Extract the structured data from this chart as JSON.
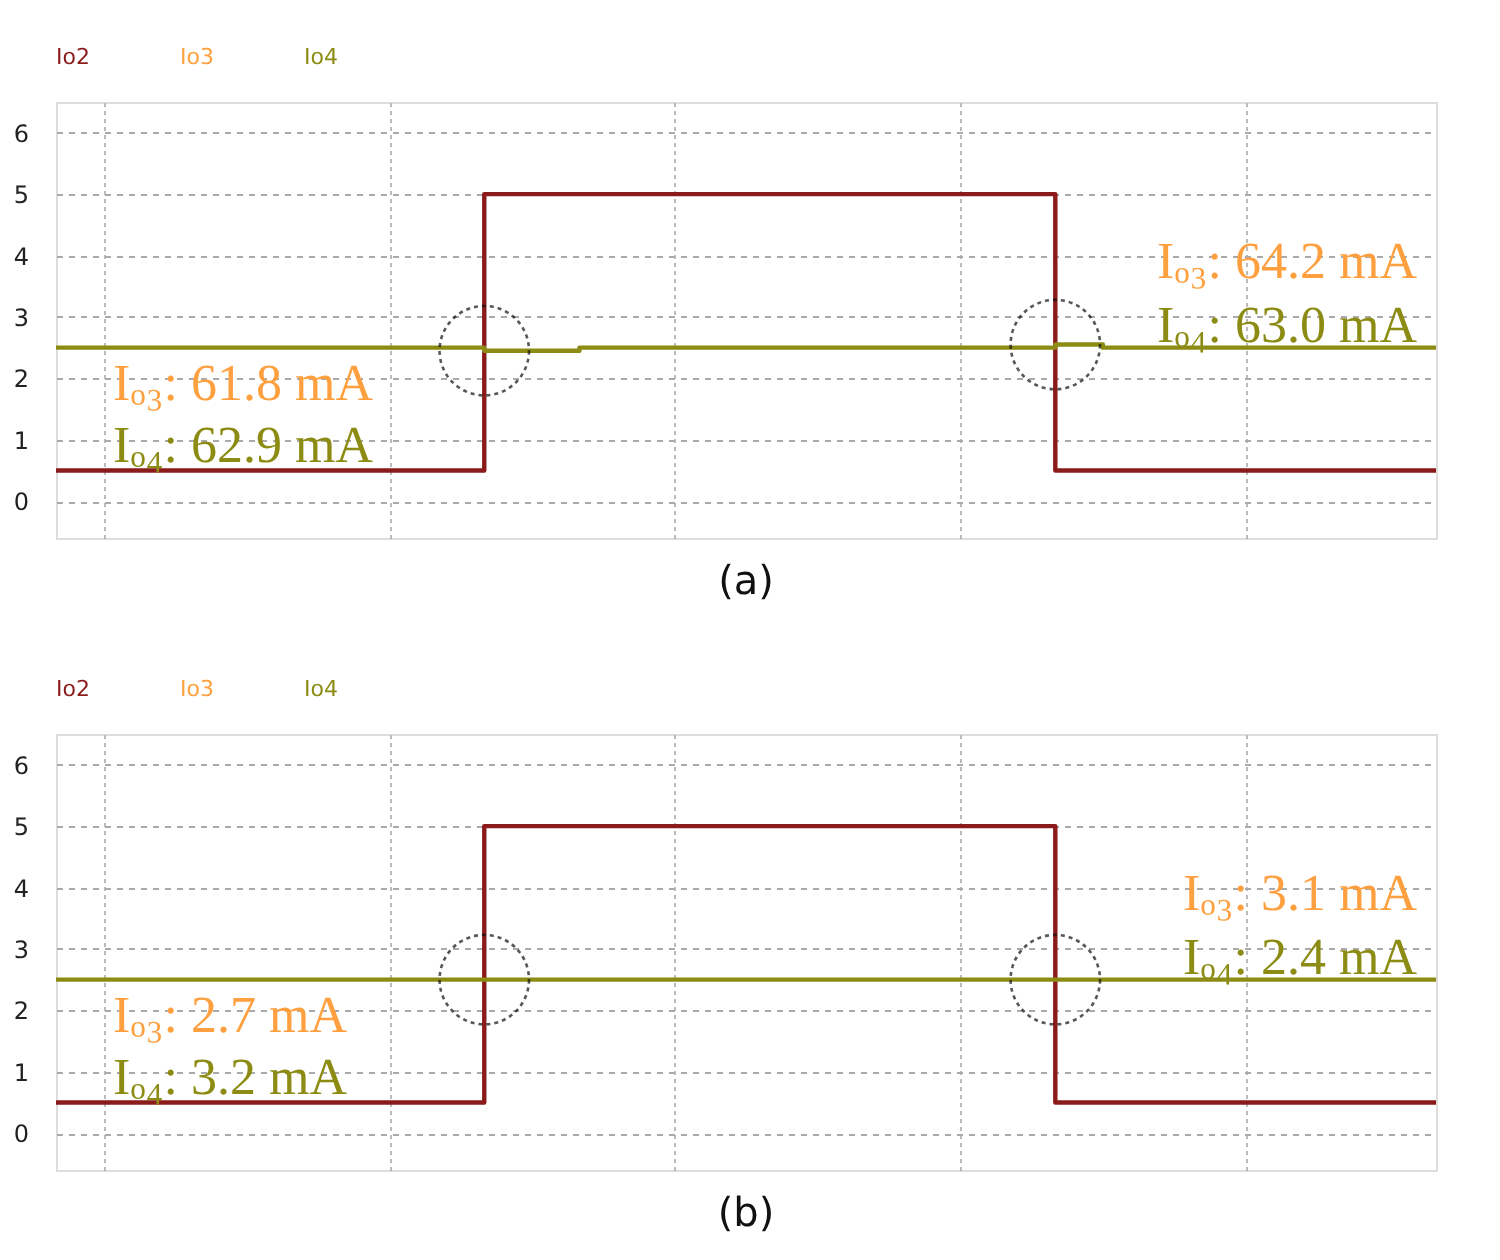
{
  "chart_data": [
    {
      "type": "step",
      "title": "(a)",
      "categories": [
        null,
        null,
        null,
        null,
        null,
        null,
        null,
        null,
        null,
        null,
        null,
        null,
        null,
        null,
        null,
        null,
        null,
        null,
        null,
        null,
        null,
        null,
        null,
        null,
        null,
        null,
        null,
        null,
        null,
        null
      ],
      "series": [
        {
          "name": "Io2",
          "color": "#8b1a1a",
          "values": [
            0.5,
            0.5,
            0.5,
            0.5,
            0.5,
            0.5,
            0.5,
            0.5,
            0.5,
            5,
            5,
            5,
            5,
            5,
            5,
            5,
            5,
            5,
            5,
            5,
            5,
            0.5,
            0.5,
            0.5,
            0.5,
            0.5,
            0.5,
            0.5,
            0.5,
            0.5
          ]
        },
        {
          "name": "Io3",
          "color": "#ffa040",
          "values": [
            null,
            null,
            null,
            null,
            null,
            null,
            null,
            null,
            null,
            null,
            null,
            null,
            null,
            null,
            null,
            null,
            null,
            null,
            null,
            null,
            null,
            null,
            null,
            null,
            null,
            null,
            null,
            null,
            null,
            null
          ]
        },
        {
          "name": "Io4",
          "color": "#8c8c14",
          "values": [
            2.5,
            2.5,
            2.5,
            2.5,
            2.5,
            2.5,
            2.5,
            2.5,
            2.5,
            2.45,
            2.45,
            2.5,
            2.5,
            2.5,
            2.5,
            2.5,
            2.5,
            2.5,
            2.5,
            2.5,
            2.5,
            2.55,
            2.5,
            2.5,
            2.5,
            2.5,
            2.5,
            2.5,
            2.5,
            2.5
          ]
        }
      ],
      "annotations": [
        "Iₒ₃: 61.8 mA",
        "Iₒ₄: 62.9 mA",
        "Iₒ₃: 64.2 mA",
        "Iₒ₄: 63.0 mA"
      ],
      "ylim": [
        -0.6,
        6.5
      ],
      "yticks": [
        0,
        1,
        2,
        3,
        4,
        5,
        6
      ],
      "grid": true,
      "legend": "top left",
      "line_style": "solid",
      "marker": "none"
    },
    {
      "type": "step",
      "title": "(b)",
      "categories": [
        null,
        null,
        null,
        null,
        null,
        null,
        null,
        null,
        null,
        null,
        null,
        null,
        null,
        null,
        null,
        null,
        null,
        null,
        null,
        null,
        null,
        null,
        null,
        null,
        null,
        null,
        null,
        null,
        null,
        null
      ],
      "series": [
        {
          "name": "Io2",
          "color": "#8b1a1a",
          "values": [
            0.5,
            0.5,
            0.5,
            0.5,
            0.5,
            0.5,
            0.5,
            0.5,
            0.5,
            5,
            5,
            5,
            5,
            5,
            5,
            5,
            5,
            5,
            5,
            5,
            5,
            0.5,
            0.5,
            0.5,
            0.5,
            0.5,
            0.5,
            0.5,
            0.5,
            0.5
          ]
        },
        {
          "name": "Io3",
          "color": "#ffa040",
          "values": [
            null,
            null,
            null,
            null,
            null,
            null,
            null,
            null,
            null,
            null,
            null,
            null,
            null,
            null,
            null,
            null,
            null,
            null,
            null,
            null,
            null,
            null,
            null,
            null,
            null,
            null,
            null,
            null,
            null,
            null
          ]
        },
        {
          "name": "Io4",
          "color": "#8c8c14",
          "values": [
            2.5,
            2.5,
            2.5,
            2.5,
            2.5,
            2.5,
            2.5,
            2.5,
            2.5,
            2.5,
            2.5,
            2.5,
            2.5,
            2.5,
            2.5,
            2.5,
            2.5,
            2.5,
            2.5,
            2.5,
            2.5,
            2.5,
            2.5,
            2.5,
            2.5,
            2.5,
            2.5,
            2.5,
            2.5,
            2.5
          ]
        }
      ],
      "annotations": [
        "Iₒ₃: 2.7 mA",
        "Iₒ₄: 3.2 mA",
        "Iₒ₃: 3.1 mA",
        "Iₒ₄: 2.4 mA"
      ],
      "ylim": [
        -0.6,
        6.5
      ],
      "yticks": [
        0,
        1,
        2,
        3,
        4,
        5,
        6
      ],
      "grid": true,
      "legend": "top left",
      "line_style": "solid",
      "marker": "none"
    }
  ]
}
